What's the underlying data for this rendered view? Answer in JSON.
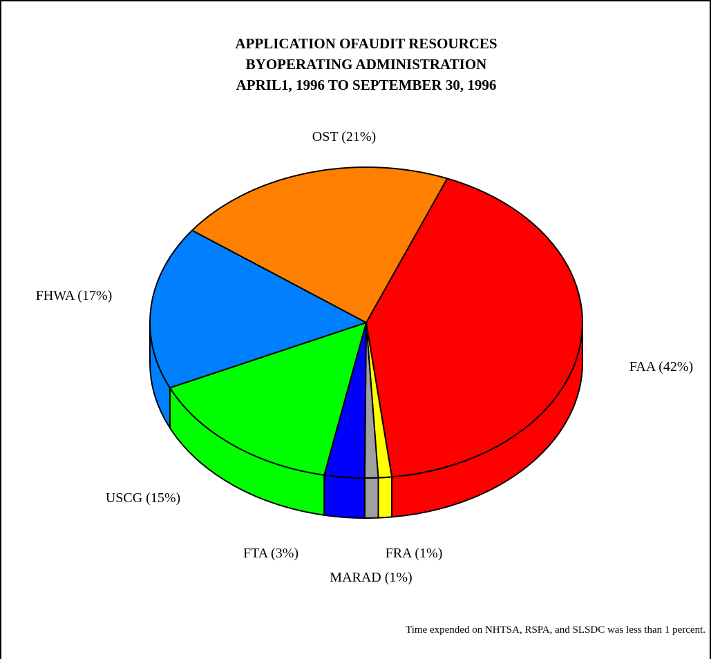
{
  "chart_data": {
    "type": "pie",
    "style": "3d",
    "title": [
      "APPLICATION OFAUDIT RESOURCES",
      "BYOPERATING ADMINISTRATION",
      "APRIL1, 1996 TO SEPTEMBER 30, 1996"
    ],
    "slices": [
      {
        "label": "FAA (42%)",
        "value": 42,
        "color": "#ff0000"
      },
      {
        "label": "FRA (1%)",
        "value": 1,
        "color": "#ffff00"
      },
      {
        "label": "MARAD (1%)",
        "value": 1,
        "color": "#a0a0a0"
      },
      {
        "label": "FTA (3%)",
        "value": 3,
        "color": "#0000ff"
      },
      {
        "label": "USCG (15%)",
        "value": 15,
        "color": "#00ff00"
      },
      {
        "label": "FHWA (17%)",
        "value": 17,
        "color": "#0080ff"
      },
      {
        "label": "OST (21%)",
        "value": 21,
        "color": "#ff8000"
      }
    ],
    "footnote": "Time expended on NHTSA, RSPA, and SLSDC was less than 1 percent."
  }
}
